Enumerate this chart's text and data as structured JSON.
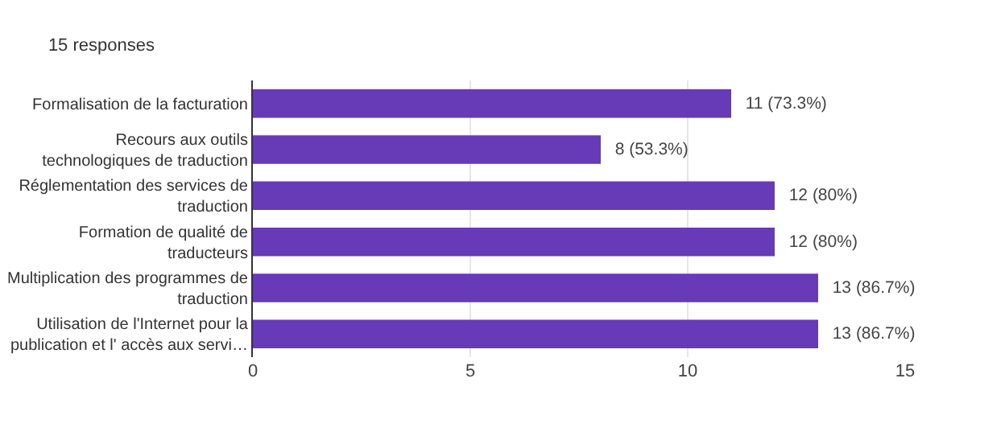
{
  "chart_data": {
    "type": "bar",
    "orientation": "horizontal",
    "title": "15 responses",
    "categories": [
      "Formalisation de la facturation",
      "Recours aux outils technologiques de traduction",
      "Réglementation des services de traduction",
      "Formation de qualité de traducteurs",
      "Multiplication des programmes de traduction",
      "Utilisation de l'Internet pour la publication et l' accès aux servi…"
    ],
    "values": [
      11,
      8,
      12,
      12,
      13,
      13
    ],
    "value_labels": [
      "11 (73.3%)",
      "8 (53.3%)",
      "12 (80%)",
      "12 (80%)",
      "13 (86.7%)",
      "13 (86.7%)"
    ],
    "color": "#673ab7",
    "xlim": [
      0,
      15
    ],
    "xticks": [
      0,
      5,
      10,
      15
    ],
    "grid": "x",
    "legend": false
  }
}
